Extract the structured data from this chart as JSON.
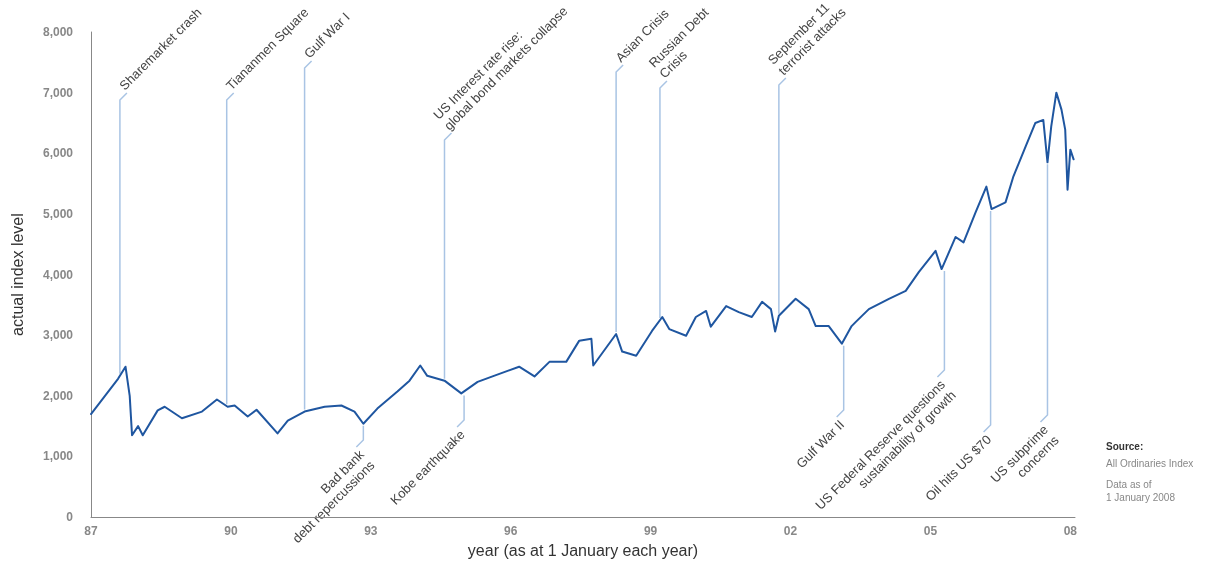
{
  "chart_data": {
    "type": "line",
    "xlabel": "year (as at 1 January each year)",
    "ylabel": "actual index level",
    "xlim": [
      1987,
      2008.1
    ],
    "xticks": [
      {
        "value": 1987,
        "label": "87"
      },
      {
        "value": 1990,
        "label": "90"
      },
      {
        "value": 1993,
        "label": "93"
      },
      {
        "value": 1996,
        "label": "96"
      },
      {
        "value": 1999,
        "label": "99"
      },
      {
        "value": 2002,
        "label": "02"
      },
      {
        "value": 2005,
        "label": "05"
      },
      {
        "value": 2008,
        "label": "08"
      }
    ],
    "ylim": [
      0,
      8000
    ],
    "yticks": [
      {
        "value": 0,
        "label": "0"
      },
      {
        "value": 1000,
        "label": "1,000"
      },
      {
        "value": 2000,
        "label": "2,000"
      },
      {
        "value": 3000,
        "label": "3,000"
      },
      {
        "value": 4000,
        "label": "4,000"
      },
      {
        "value": 5000,
        "label": "5,000"
      },
      {
        "value": 6000,
        "label": "6,000"
      },
      {
        "value": 7000,
        "label": "7,000"
      },
      {
        "value": 8000,
        "label": "8,000"
      }
    ],
    "grid": false,
    "marker": "none",
    "line_style": "solid",
    "series": [
      {
        "color": "#1f56a0",
        "x": [
          1987.0,
          1987.3,
          1987.58,
          1987.74,
          1987.83,
          1987.88,
          1988.01,
          1988.11,
          1988.43,
          1988.58,
          1988.95,
          1989.38,
          1989.7,
          1989.93,
          1990.08,
          1990.36,
          1990.55,
          1991.0,
          1991.22,
          1991.58,
          1992.01,
          1992.37,
          1992.65,
          1992.84,
          1993.14,
          1993.57,
          1993.83,
          1994.06,
          1994.21,
          1994.58,
          1994.94,
          1995.29,
          1995.61,
          1996.18,
          1996.51,
          1996.83,
          1997.19,
          1997.47,
          1997.73,
          1997.77,
          1998.26,
          1998.39,
          1998.69,
          1999.03,
          1999.25,
          1999.4,
          1999.76,
          1999.97,
          2000.19,
          2000.29,
          2000.62,
          2000.89,
          2001.17,
          2001.39,
          2001.58,
          2001.67,
          2001.75,
          2002.11,
          2002.39,
          2002.54,
          2002.82,
          2003.1,
          2003.31,
          2003.4,
          2003.68,
          2004.11,
          2004.47,
          2004.75,
          2005.11,
          2005.24,
          2005.54,
          2005.71,
          2005.97,
          2006.2,
          2006.31,
          2006.61,
          2006.78,
          2007.04,
          2007.25,
          2007.42,
          2007.51,
          2007.59,
          2007.7,
          2007.81,
          2007.89,
          2007.94,
          2008.0,
          2008.07
        ],
        "values": [
          1700,
          2000,
          2280,
          2480,
          2000,
          1350,
          1500,
          1350,
          1760,
          1820,
          1630,
          1740,
          1940,
          1820,
          1840,
          1660,
          1770,
          1380,
          1590,
          1740,
          1820,
          1840,
          1740,
          1540,
          1790,
          2070,
          2250,
          2500,
          2330,
          2250,
          2040,
          2230,
          2320,
          2480,
          2320,
          2560,
          2560,
          2910,
          2940,
          2500,
          3020,
          2730,
          2660,
          3070,
          3300,
          3100,
          2990,
          3300,
          3400,
          3140,
          3480,
          3380,
          3300,
          3550,
          3430,
          3060,
          3320,
          3600,
          3430,
          3150,
          3150,
          2860,
          3150,
          3220,
          3430,
          3600,
          3730,
          4040,
          4390,
          4090,
          4620,
          4530,
          5030,
          5450,
          5080,
          5190,
          5620,
          6110,
          6500,
          6550,
          5850,
          6440,
          7000,
          6720,
          6390,
          5400,
          6060,
          5900
        ]
      }
    ],
    "annotations": [
      {
        "text": "Sharemarket crash",
        "x": 1987.62,
        "y": 2330
      },
      {
        "text": "Tiananmen Square",
        "x": 1989.91,
        "y": 1830
      },
      {
        "text": "Gulf War I",
        "x": 1991.58,
        "y": 1740
      },
      {
        "text": "US Interest rate rise:\nglobal bond markets collapse",
        "x": 1994.58,
        "y": 2250
      },
      {
        "text": "Asian Crisis",
        "x": 1998.26,
        "y": 3020
      },
      {
        "text": "Russian Debt\nCrisis",
        "x": 1999.2,
        "y": 3250
      },
      {
        "text": "September 11\nterrorist attacks",
        "x": 2001.75,
        "y": 3320
      },
      {
        "text": "Bad bank\ndebt repercussions",
        "x": 1992.84,
        "y": 1540
      },
      {
        "text": "Kobe earthquake",
        "x": 1995.0,
        "y": 2040
      },
      {
        "text": "Gulf War II",
        "x": 2003.14,
        "y": 2860
      },
      {
        "text": "US Federal Reserve questions\nsustainability of growth",
        "x": 2005.3,
        "y": 4090
      },
      {
        "text": "Oil hits US $70",
        "x": 2006.29,
        "y": 5080
      },
      {
        "text": "US subprime\nconcerns",
        "x": 2007.51,
        "y": 5850
      },
      "Source:",
      "All Ordinaries Index",
      "Data as of\n1 January 2008"
    ]
  }
}
